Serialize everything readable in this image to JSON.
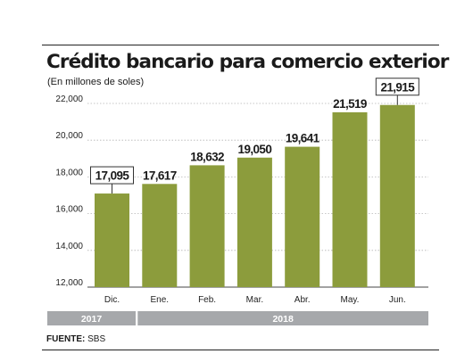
{
  "chart_data": {
    "type": "bar",
    "title": "Crédito bancario para comercio exterior",
    "subtitle": "(En millones de soles)",
    "categories": [
      "Dic.",
      "Ene.",
      "Feb.",
      "Mar.",
      "Abr.",
      "May.",
      "Jun."
    ],
    "values": [
      17095,
      17617,
      18632,
      19050,
      19641,
      21519,
      21915
    ],
    "value_labels": [
      "17,095",
      "17,617",
      "18,632",
      "19,050",
      "19,641",
      "21,519",
      "21,915"
    ],
    "boxed_labels": [
      0,
      6
    ],
    "yticks": [
      12000,
      14000,
      16000,
      18000,
      20000,
      22000
    ],
    "ytick_labels": [
      "12,000",
      "14,000",
      "16,000",
      "18,000",
      "20,000",
      "22,000"
    ],
    "ylim": [
      12000,
      22600
    ],
    "grid": "dashed-horizontal",
    "year_groups": [
      {
        "label": "2017",
        "start": 0,
        "end": 0
      },
      {
        "label": "2018",
        "start": 1,
        "end": 6
      }
    ],
    "bar_color": "#8c9c3c",
    "year_band_color": "#a6a8ab"
  },
  "source": {
    "label": "FUENTE:",
    "text": " SBS"
  }
}
